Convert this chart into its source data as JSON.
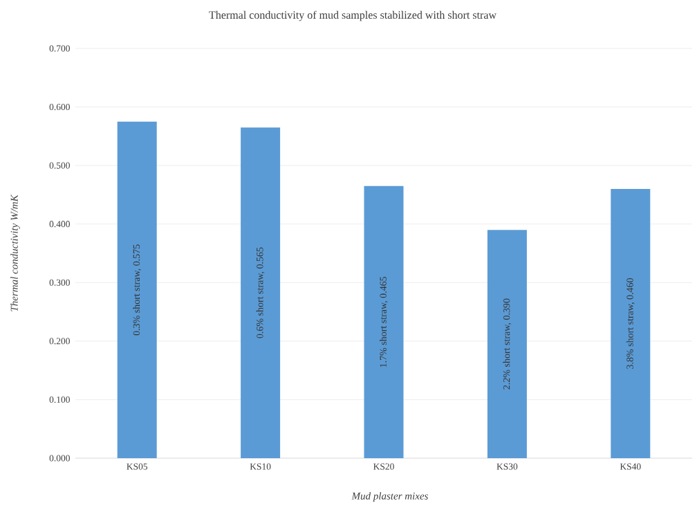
{
  "chart_data": {
    "type": "bar",
    "title": "Thermal conductivity of mud samples stabilized with short straw",
    "xlabel": "Mud plaster mixes",
    "ylabel": "Thermal conductivity W/mK",
    "categories": [
      "KS05",
      "KS10",
      "KS20",
      "KS30",
      "KS40"
    ],
    "values": [
      0.575,
      0.565,
      0.465,
      0.39,
      0.46
    ],
    "value_labels": [
      "0.3% short straw, 0.575",
      "0.6% short straw, 0.565",
      "1.7% short straw, 0.465",
      "2.2% short straw, 0.390",
      "3.8% short straw, 0.460"
    ],
    "color": "#5b9bd5",
    "ylim": [
      0,
      0.7
    ],
    "yticks": [
      {
        "value": 0,
        "label": "0.000"
      },
      {
        "value": 0.1,
        "label": "0.100"
      },
      {
        "value": 0.2,
        "label": "0.200"
      },
      {
        "value": 0.3,
        "label": "0.300"
      },
      {
        "value": 0.4,
        "label": "0.400"
      },
      {
        "value": 0.5,
        "label": "0.500"
      },
      {
        "value": 0.6,
        "label": "0.600"
      },
      {
        "value": 0.7,
        "label": "0.700"
      }
    ],
    "grid": "y"
  }
}
